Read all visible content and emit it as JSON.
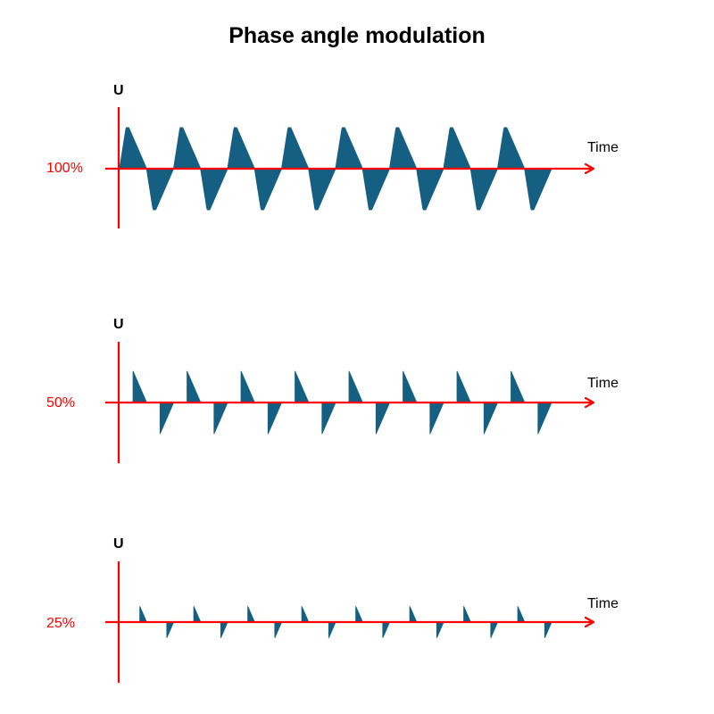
{
  "title": "Phase angle modulation",
  "colors": {
    "axis": "#ff0000",
    "wave": "#155f82",
    "text": "#000000",
    "level_label": "#ff0000"
  },
  "panels": [
    {
      "level_label": "100%",
      "level": 1.0,
      "y_label": "U",
      "x_label": "Time"
    },
    {
      "level_label": "50%",
      "level": 0.5,
      "y_label": "U",
      "x_label": "Time"
    },
    {
      "level_label": "25%",
      "level": 0.25,
      "y_label": "U",
      "x_label": "Time"
    }
  ],
  "cycles": 8
}
